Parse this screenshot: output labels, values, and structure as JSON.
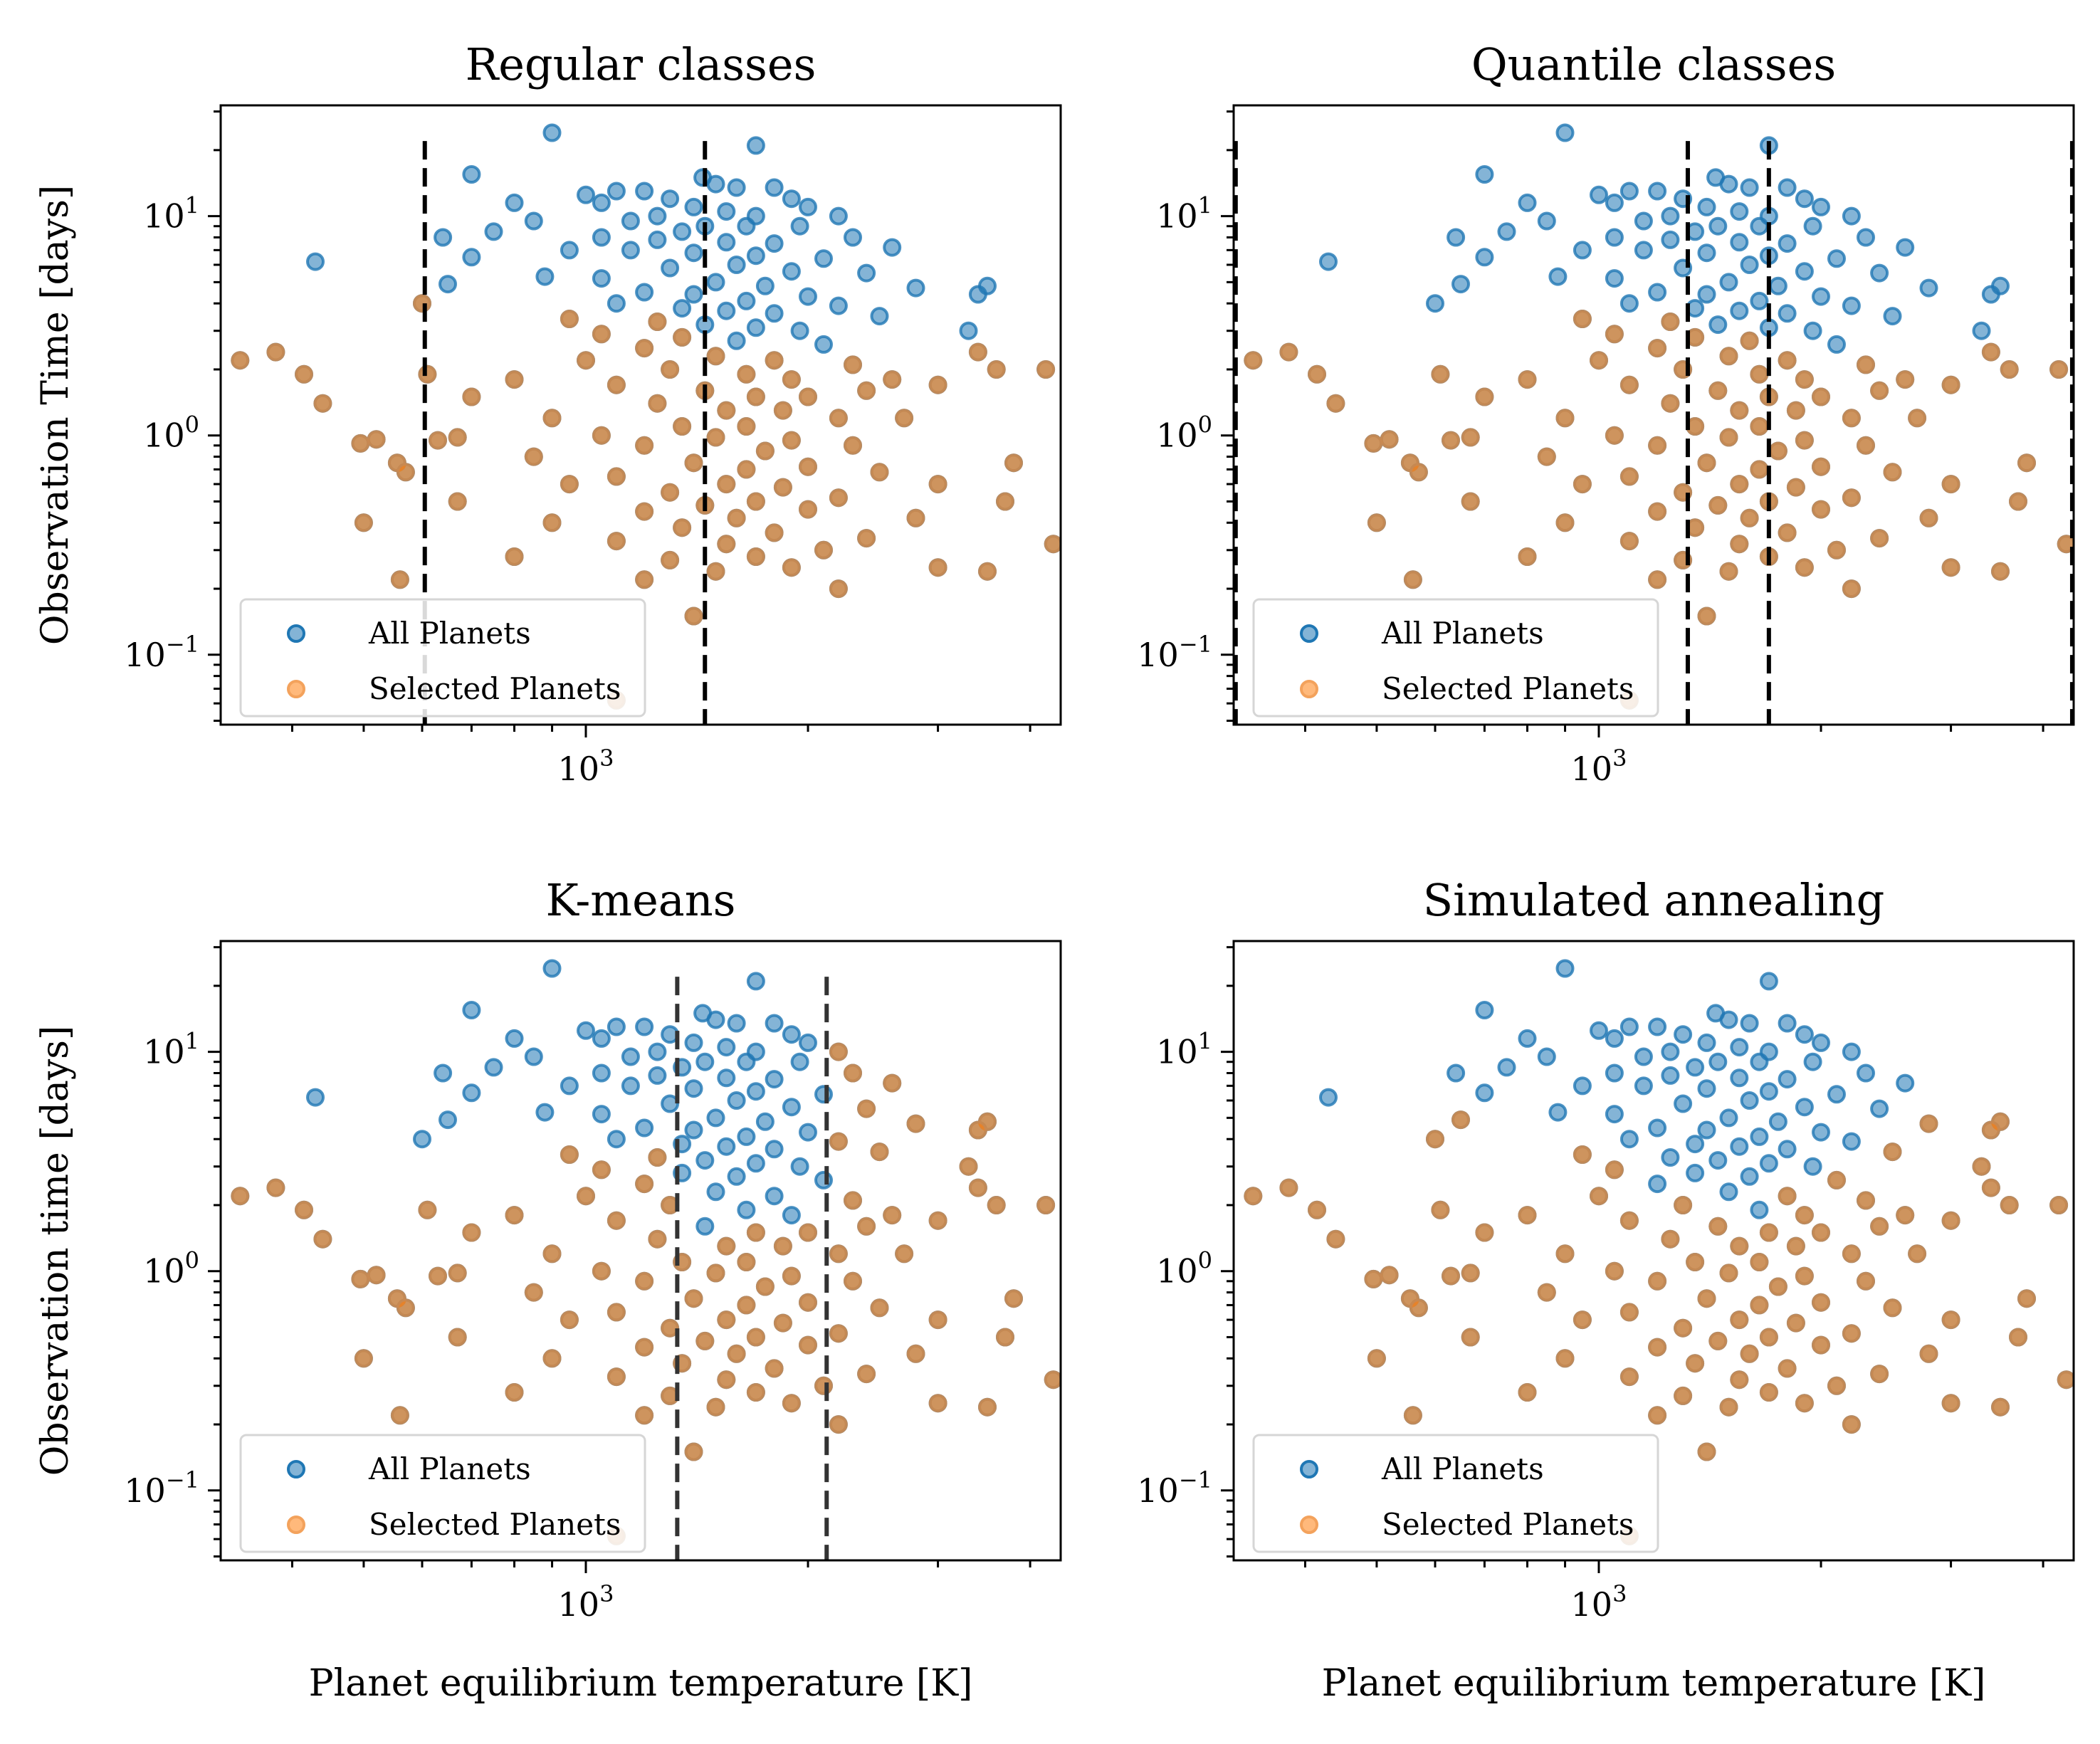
{
  "figure": {
    "layout": "2x2 grid"
  },
  "chart_data": [
    {
      "type": "scatter",
      "title": "Regular classes",
      "ylabel": "Observation Time [days]",
      "xlabel": "",
      "xscale": "log",
      "yscale": "log",
      "xlim": [
        320,
        4400
      ],
      "ylim": [
        0.048,
        32
      ],
      "xtick_labels": [
        {
          "base": "10",
          "exp": "3",
          "value": 1000
        }
      ],
      "ytick_labels": [
        {
          "base": "10",
          "exp": "1",
          "value": 10
        },
        {
          "base": "10",
          "exp": "0",
          "value": 1
        },
        {
          "base": "10",
          "exp": "−1",
          "value": 0.1
        }
      ],
      "vlines": [
        605,
        1450
      ],
      "vline_color": "#000000",
      "selection": {
        "rule": "class_threshold",
        "breaks": [
          605,
          1450
        ],
        "thresholds": [
          4.5,
          3.5,
          2.6
        ]
      },
      "legend": {
        "location": "lower left",
        "entries": [
          "All Planets",
          "Selected Planets"
        ]
      },
      "series": [
        {
          "name": "All Planets",
          "color": "#1f77b4"
        },
        {
          "name": "Selected Planets",
          "color": "#ff7f0e"
        }
      ]
    },
    {
      "type": "scatter",
      "title": "Quantile classes",
      "ylabel": "",
      "xlabel": "",
      "xscale": "log",
      "yscale": "log",
      "xlim": [
        320,
        4400
      ],
      "ylim": [
        0.048,
        32
      ],
      "xtick_labels": [
        {
          "base": "10",
          "exp": "3",
          "value": 1000
        }
      ],
      "ytick_labels": [
        {
          "base": "10",
          "exp": "1",
          "value": 10
        },
        {
          "base": "10",
          "exp": "0",
          "value": 1
        },
        {
          "base": "10",
          "exp": "−1",
          "value": 0.1
        }
      ],
      "vlines": [
        322,
        1320,
        1700,
        4380
      ],
      "vline_color": "#000000",
      "selection": {
        "rule": "class_threshold",
        "breaks": [
          1320,
          1700
        ],
        "thresholds": [
          3.5,
          3.2,
          2.6
        ]
      },
      "legend": {
        "location": "lower left",
        "entries": [
          "All Planets",
          "Selected Planets"
        ]
      },
      "series": [
        {
          "name": "All Planets",
          "color": "#1f77b4"
        },
        {
          "name": "Selected Planets",
          "color": "#ff7f0e"
        }
      ]
    },
    {
      "type": "scatter",
      "title": "K-means",
      "ylabel": "Observation time [days]",
      "xlabel": "Planet equilibrium temperature [K]",
      "xscale": "log",
      "yscale": "log",
      "xlim": [
        320,
        4400
      ],
      "ylim": [
        0.048,
        32
      ],
      "xtick_labels": [
        {
          "base": "10",
          "exp": "3",
          "value": 1000
        }
      ],
      "ytick_labels": [
        {
          "base": "10",
          "exp": "1",
          "value": 10
        },
        {
          "base": "10",
          "exp": "0",
          "value": 1
        },
        {
          "base": "10",
          "exp": "−1",
          "value": 0.1
        }
      ],
      "vlines": [
        1330,
        2120
      ],
      "vline_color": "#333333",
      "selection": {
        "rule": "class_threshold",
        "breaks": [
          1330,
          2120
        ],
        "thresholds": [
          3.8,
          1.6,
          100
        ]
      },
      "legend": {
        "location": "lower left",
        "entries": [
          "All Planets",
          "Selected Planets"
        ]
      },
      "series": [
        {
          "name": "All Planets",
          "color": "#1f77b4"
        },
        {
          "name": "Selected Planets",
          "color": "#ff7f0e"
        }
      ]
    },
    {
      "type": "scatter",
      "title": "Simulated annealing",
      "ylabel": "",
      "xlabel": "Planet equilibrium temperature [K]",
      "xscale": "log",
      "yscale": "log",
      "xlim": [
        320,
        4400
      ],
      "ylim": [
        0.048,
        32
      ],
      "xtick_labels": [
        {
          "base": "10",
          "exp": "3",
          "value": 1000
        }
      ],
      "ytick_labels": [
        {
          "base": "10",
          "exp": "1",
          "value": 10
        },
        {
          "base": "10",
          "exp": "0",
          "value": 1
        },
        {
          "base": "10",
          "exp": "−1",
          "value": 0.1
        }
      ],
      "vlines": [],
      "vline_color": "#000000",
      "selection": {
        "rule": "v_curve",
        "center_temp": 1500,
        "min_time": 1.5,
        "slope": 2.2,
        "cap": 5.5
      },
      "legend": {
        "location": "lower left",
        "entries": [
          "All Planets",
          "Selected Planets"
        ]
      },
      "series": [
        {
          "name": "All Planets",
          "color": "#1f77b4"
        },
        {
          "name": "Selected Planets",
          "color": "#ff7f0e"
        }
      ]
    }
  ],
  "planets": {
    "note": "Shared population shown in all four panels: [equilibrium temperature K, observation time days]",
    "points": [
      [
        900,
        24
      ],
      [
        1700,
        21
      ],
      [
        700,
        15.5
      ],
      [
        1440,
        15
      ],
      [
        1500,
        14
      ],
      [
        1600,
        13.5
      ],
      [
        1800,
        13.5
      ],
      [
        1100,
        13
      ],
      [
        1200,
        13
      ],
      [
        1000,
        12.5
      ],
      [
        1300,
        12
      ],
      [
        1900,
        12
      ],
      [
        800,
        11.5
      ],
      [
        1050,
        11.5
      ],
      [
        1400,
        11
      ],
      [
        2000,
        11
      ],
      [
        1550,
        10.5
      ],
      [
        1250,
        10
      ],
      [
        1700,
        10
      ],
      [
        2200,
        10
      ],
      [
        850,
        9.5
      ],
      [
        1150,
        9.5
      ],
      [
        1450,
        9
      ],
      [
        1650,
        9
      ],
      [
        1950,
        9
      ],
      [
        750,
        8.5
      ],
      [
        1350,
        8.5
      ],
      [
        2300,
        8
      ],
      [
        640,
        8
      ],
      [
        1050,
        8
      ],
      [
        1250,
        7.8
      ],
      [
        1550,
        7.6
      ],
      [
        1800,
        7.5
      ],
      [
        2600,
        7.2
      ],
      [
        950,
        7
      ],
      [
        1150,
        7
      ],
      [
        1400,
        6.8
      ],
      [
        1700,
        6.6
      ],
      [
        2100,
        6.4
      ],
      [
        700,
        6.5
      ],
      [
        430,
        6.2
      ],
      [
        1600,
        6
      ],
      [
        1300,
        5.8
      ],
      [
        1900,
        5.6
      ],
      [
        2400,
        5.5
      ],
      [
        880,
        5.3
      ],
      [
        1050,
        5.2
      ],
      [
        1500,
        5
      ],
      [
        1750,
        4.8
      ],
      [
        2800,
        4.7
      ],
      [
        3500,
        4.8
      ],
      [
        650,
        4.9
      ],
      [
        1200,
        4.5
      ],
      [
        1400,
        4.4
      ],
      [
        2000,
        4.3
      ],
      [
        1650,
        4.1
      ],
      [
        3400,
        4.4
      ],
      [
        600,
        4
      ],
      [
        1100,
        4
      ],
      [
        2200,
        3.9
      ],
      [
        1350,
        3.8
      ],
      [
        1550,
        3.7
      ],
      [
        1800,
        3.6
      ],
      [
        2500,
        3.5
      ],
      [
        950,
        3.4
      ],
      [
        1250,
        3.3
      ],
      [
        1450,
        3.2
      ],
      [
        1700,
        3.1
      ],
      [
        1950,
        3
      ],
      [
        3300,
        3
      ],
      [
        1050,
        2.9
      ],
      [
        1350,
        2.8
      ],
      [
        1600,
        2.7
      ],
      [
        2100,
        2.6
      ],
      [
        1200,
        2.5
      ],
      [
        3400,
        2.4
      ],
      [
        1500,
        2.3
      ],
      [
        1800,
        2.2
      ],
      [
        2300,
        2.1
      ],
      [
        1000,
        2.2
      ],
      [
        340,
        2.2
      ],
      [
        380,
        2.4
      ],
      [
        415,
        1.9
      ],
      [
        3600,
        2
      ],
      [
        4200,
        2
      ],
      [
        1300,
        2
      ],
      [
        1650,
        1.9
      ],
      [
        1900,
        1.8
      ],
      [
        2600,
        1.8
      ],
      [
        800,
        1.8
      ],
      [
        610,
        1.9
      ],
      [
        1100,
        1.7
      ],
      [
        1450,
        1.6
      ],
      [
        1700,
        1.5
      ],
      [
        2000,
        1.5
      ],
      [
        2400,
        1.6
      ],
      [
        3000,
        1.7
      ],
      [
        700,
        1.5
      ],
      [
        1250,
        1.4
      ],
      [
        1550,
        1.3
      ],
      [
        1850,
        1.3
      ],
      [
        2200,
        1.2
      ],
      [
        440,
        1.4
      ],
      [
        900,
        1.2
      ],
      [
        1350,
        1.1
      ],
      [
        1650,
        1.1
      ],
      [
        2700,
        1.2
      ],
      [
        1050,
        1
      ],
      [
        1500,
        0.98
      ],
      [
        1900,
        0.95
      ],
      [
        630,
        0.95
      ],
      [
        670,
        0.98
      ],
      [
        1200,
        0.9
      ],
      [
        1750,
        0.85
      ],
      [
        2300,
        0.9
      ],
      [
        495,
        0.92
      ],
      [
        520,
        0.96
      ],
      [
        3800,
        0.75
      ],
      [
        850,
        0.8
      ],
      [
        1400,
        0.75
      ],
      [
        1650,
        0.7
      ],
      [
        2000,
        0.72
      ],
      [
        2500,
        0.68
      ],
      [
        555,
        0.75
      ],
      [
        570,
        0.68
      ],
      [
        3000,
        0.6
      ],
      [
        1100,
        0.65
      ],
      [
        1550,
        0.6
      ],
      [
        1850,
        0.58
      ],
      [
        950,
        0.6
      ],
      [
        1300,
        0.55
      ],
      [
        2200,
        0.52
      ],
      [
        1700,
        0.5
      ],
      [
        670,
        0.5
      ],
      [
        1450,
        0.48
      ],
      [
        2000,
        0.46
      ],
      [
        3700,
        0.5
      ],
      [
        1200,
        0.45
      ],
      [
        1600,
        0.42
      ],
      [
        2800,
        0.42
      ],
      [
        500,
        0.4
      ],
      [
        900,
        0.4
      ],
      [
        1350,
        0.38
      ],
      [
        1800,
        0.36
      ],
      [
        2400,
        0.34
      ],
      [
        1100,
        0.33
      ],
      [
        4300,
        0.32
      ],
      [
        1550,
        0.32
      ],
      [
        2100,
        0.3
      ],
      [
        1700,
        0.28
      ],
      [
        800,
        0.28
      ],
      [
        1300,
        0.27
      ],
      [
        3000,
        0.25
      ],
      [
        1900,
        0.25
      ],
      [
        1500,
        0.24
      ],
      [
        3500,
        0.24
      ],
      [
        1200,
        0.22
      ],
      [
        2200,
        0.2
      ],
      [
        560,
        0.22
      ],
      [
        1400,
        0.15
      ],
      [
        1100,
        0.062
      ]
    ]
  }
}
